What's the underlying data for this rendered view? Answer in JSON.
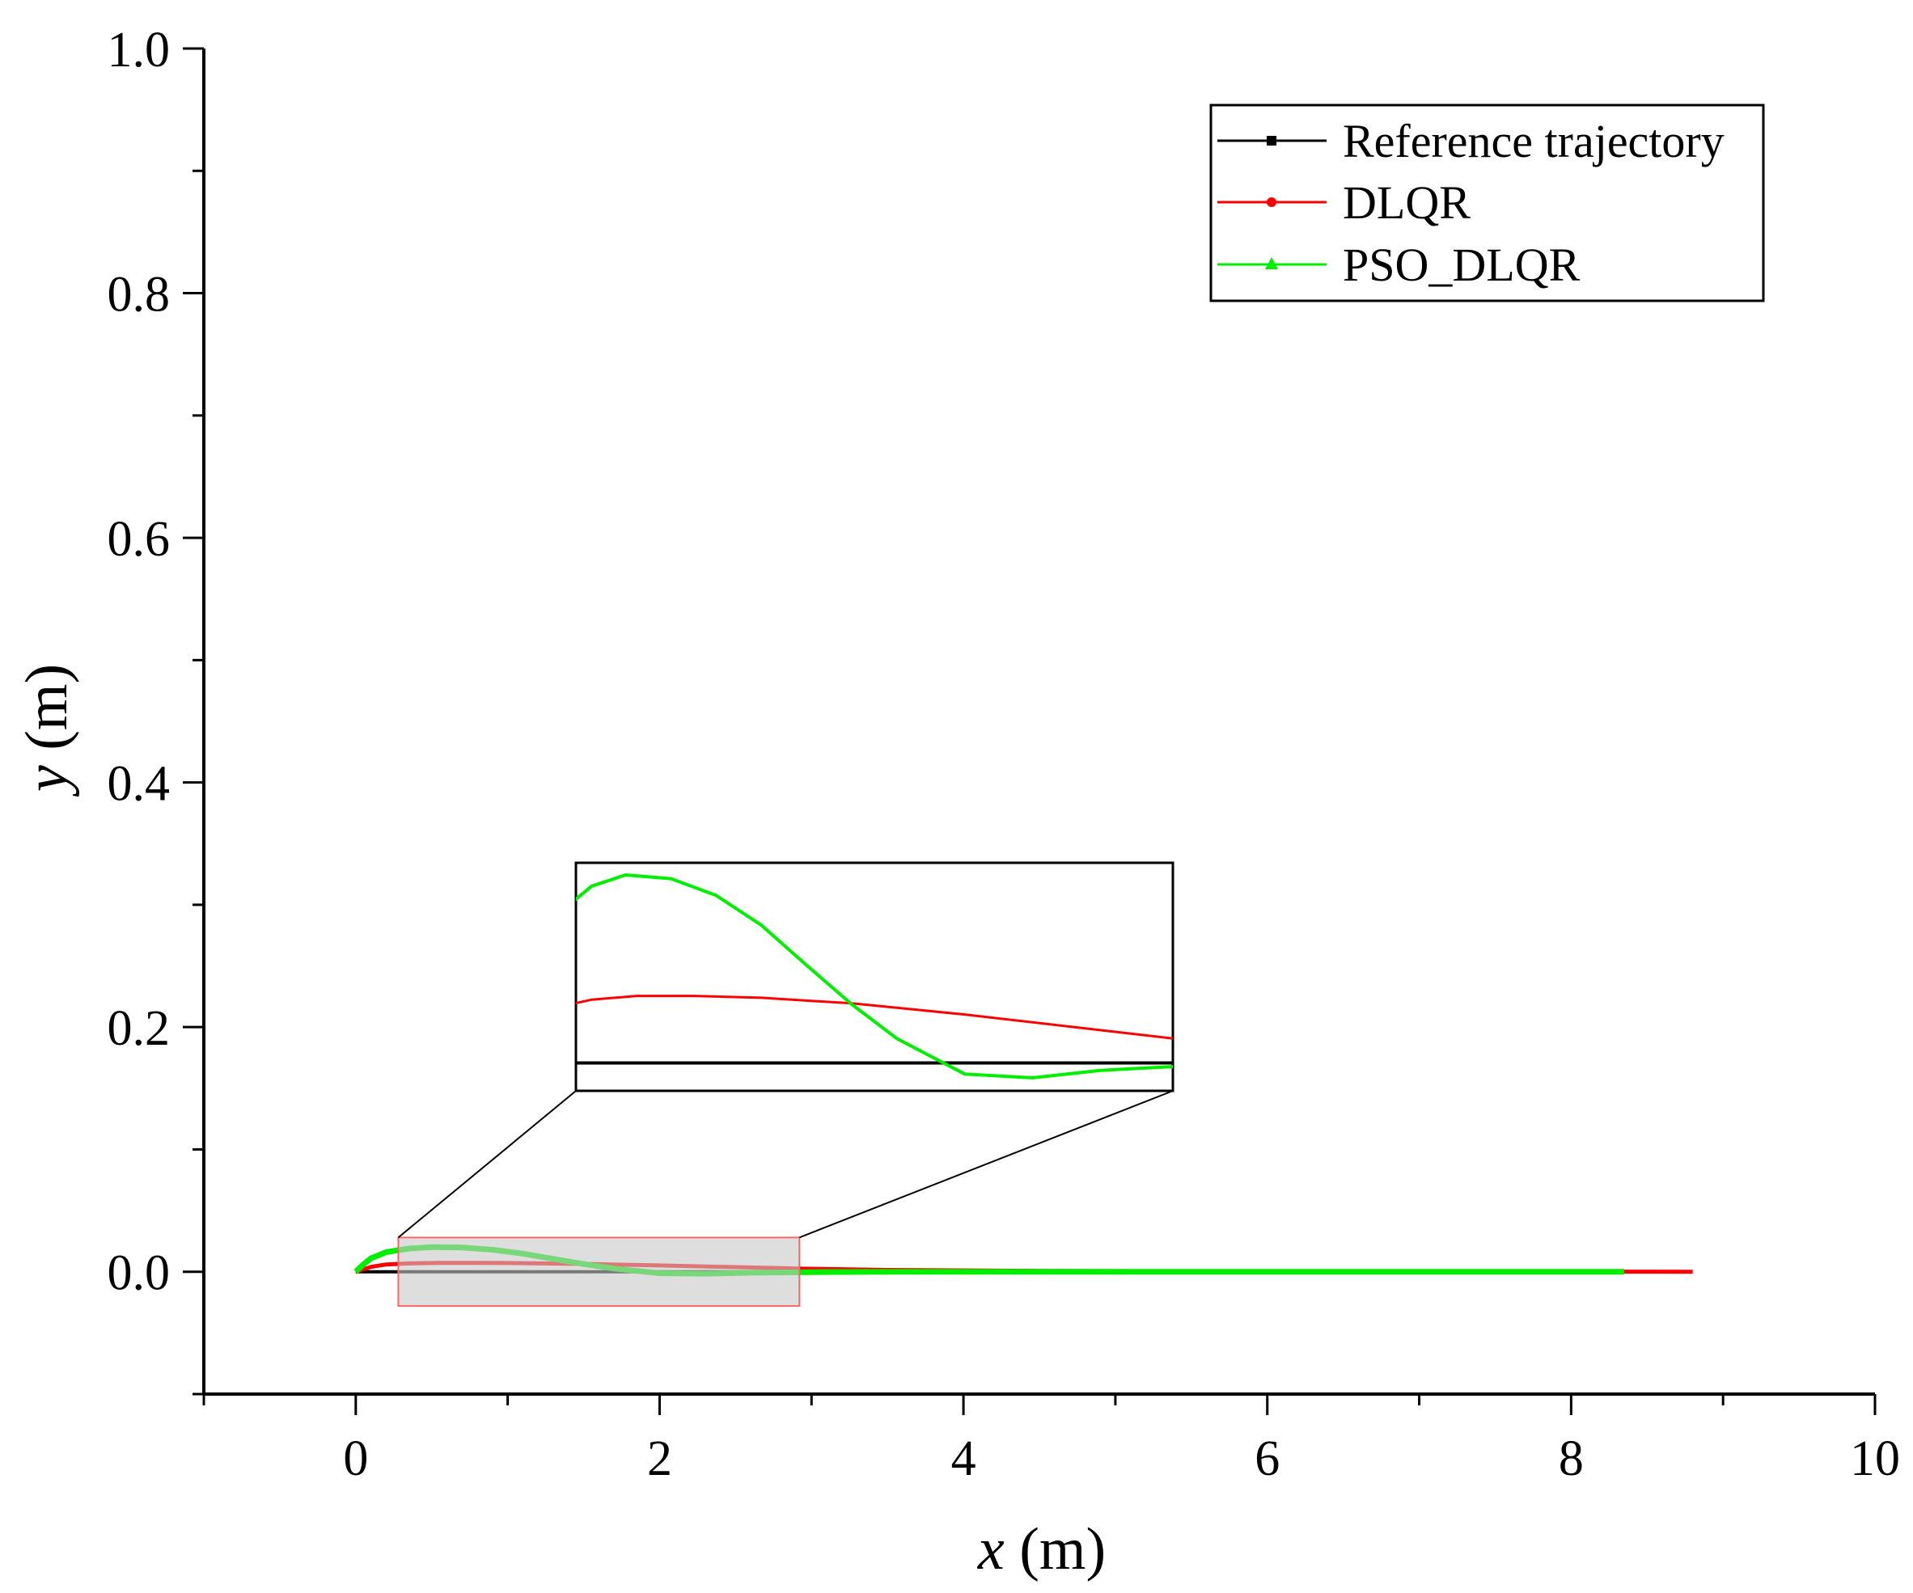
{
  "chart_data": {
    "type": "line",
    "xlabel_var": "x",
    "xlabel_unit": " (m)",
    "ylabel_var": "y",
    "ylabel_unit": " (m)",
    "xlim": [
      -1,
      10
    ],
    "ylim": [
      -0.1,
      1.0
    ],
    "x_ticks": [
      0,
      2,
      4,
      6,
      8,
      10
    ],
    "x_tick_labels": [
      "0",
      "2",
      "4",
      "6",
      "8",
      "10"
    ],
    "y_ticks": [
      0.0,
      0.2,
      0.4,
      0.6,
      0.8,
      1.0
    ],
    "y_tick_labels": [
      "0.0",
      "0.2",
      "0.4",
      "0.6",
      "0.8",
      "1.0"
    ],
    "grid": false,
    "legend_position": "top-right",
    "series": [
      {
        "name": "Reference trajectory",
        "color": "#000000",
        "marker": "square",
        "x": [
          0,
          1,
          2,
          3,
          4,
          5,
          6,
          7,
          8,
          8.4
        ],
        "y": [
          0,
          0,
          0,
          0,
          0,
          0,
          0,
          0,
          0,
          0
        ]
      },
      {
        "name": "DLQR",
        "color": "#ff0000",
        "marker": "circle",
        "x": [
          0,
          0.1,
          0.2,
          0.35,
          0.55,
          0.8,
          1.1,
          1.5,
          2.0,
          2.5,
          3.0,
          3.5,
          4.5,
          6.0,
          8.0,
          8.8
        ],
        "y": [
          0,
          0.004,
          0.006,
          0.0068,
          0.0072,
          0.0072,
          0.007,
          0.0064,
          0.0052,
          0.0038,
          0.0024,
          0.0015,
          0.0007,
          0.0003,
          0.0001,
          0
        ]
      },
      {
        "name": "PSO_DLQR",
        "color": "#00ee00",
        "marker": "triangle",
        "x": [
          0,
          0.05,
          0.1,
          0.2,
          0.35,
          0.5,
          0.7,
          0.9,
          1.1,
          1.3,
          1.5,
          1.7,
          2.0,
          2.3,
          2.6,
          3.0,
          3.5,
          4.5,
          6.0,
          8.0,
          8.35
        ],
        "y": [
          0,
          0.006,
          0.011,
          0.016,
          0.019,
          0.0202,
          0.0198,
          0.018,
          0.0148,
          0.0105,
          0.0063,
          0.0026,
          -0.0012,
          -0.0016,
          -0.0008,
          -0.0003,
          0,
          0,
          0,
          0,
          0
        ]
      }
    ],
    "inset": {
      "xlim": [
        0.28,
        2.92
      ],
      "ylim": [
        -0.003,
        0.0215
      ]
    }
  }
}
